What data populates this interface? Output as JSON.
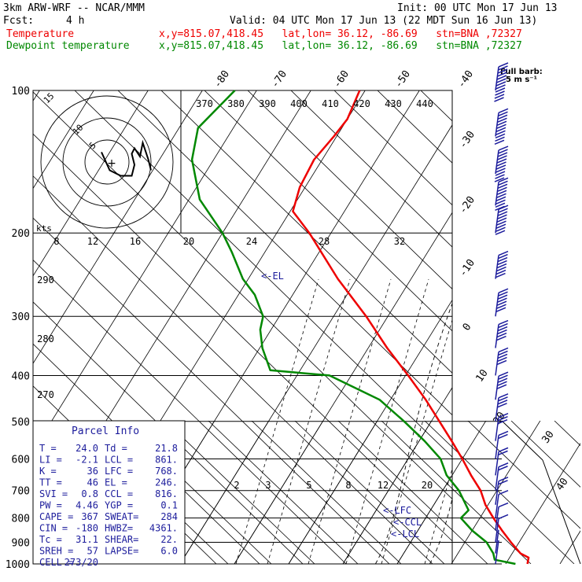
{
  "header": {
    "model": "3km ARW-WRF -- NCAR/MMM",
    "init": "Init: 00 UTC Mon 17 Jun 13",
    "fcst_label": "Fcst:",
    "fcst_value": "4 h",
    "valid": "Valid: 04 UTC Mon 17 Jun 13 (22 MDT Sun 16 Jun 13)",
    "temp_label": "Temperature",
    "temp_loc": "x,y=815.07,418.45   lat,lon= 36.12, -86.69   stn=BNA ,72327",
    "dew_label": "Dewpoint temperature",
    "dew_loc": "x,y=815.07,418.45   lat,lon= 36.12, -86.69   stn=BNA ,72327"
  },
  "colors": {
    "temperature": "#ee0000",
    "dewpoint": "#008800",
    "axes": "#000000",
    "barbs": "#1c1c9c"
  },
  "chart_data": {
    "type": "line",
    "pressure_levels": [
      1000,
      900,
      800,
      700,
      600,
      500,
      400,
      300,
      200,
      100
    ],
    "pressure_labels": [
      "1000",
      "900",
      "800",
      "700",
      "600",
      "500",
      "400",
      "300",
      "200",
      "100"
    ],
    "isotherm_labels": [
      "-80",
      "-70",
      "-60",
      "-50",
      "-40",
      "-30",
      "-20",
      "-10",
      "0",
      "10",
      "20",
      "30",
      "40"
    ],
    "theta_labels": [
      "370",
      "380",
      "390",
      "400",
      "410",
      "420",
      "430",
      "440"
    ],
    "left_theta_labels": [
      "290",
      "280",
      "270"
    ],
    "mixing_ratio_labels": [
      "2",
      "3",
      "5",
      "8",
      "12",
      "20"
    ],
    "hodo_speed_labels": [
      "8",
      "12",
      "16",
      "20",
      "24",
      "28",
      "32"
    ],
    "hodo_ring_labels": [
      "5",
      "10",
      "15"
    ],
    "hodo_units": "kts",
    "barb_legend": [
      "Full barb:",
      "5 m s⁻¹"
    ],
    "level_markers": [
      "<-EL",
      "<-LFC",
      "<-CCL",
      "<-LCL"
    ],
    "series": [
      {
        "name": "Temperature",
        "points": [
          [
            1000,
            24.0
          ],
          [
            970,
            23.5
          ],
          [
            950,
            21.5
          ],
          [
            900,
            18.5
          ],
          [
            850,
            15.5
          ],
          [
            800,
            12.5
          ],
          [
            750,
            9.5
          ],
          [
            700,
            7.0
          ],
          [
            650,
            3.5
          ],
          [
            600,
            0.0
          ],
          [
            550,
            -4.0
          ],
          [
            500,
            -8.5
          ],
          [
            450,
            -13.5
          ],
          [
            400,
            -19.5
          ],
          [
            350,
            -26.5
          ],
          [
            300,
            -34.0
          ],
          [
            250,
            -43.5
          ],
          [
            200,
            -54.0
          ],
          [
            180,
            -59.5
          ],
          [
            160,
            -61.0
          ],
          [
            140,
            -61.5
          ],
          [
            125,
            -60.5
          ],
          [
            115,
            -60.0
          ],
          [
            100,
            -61.0
          ]
        ]
      },
      {
        "name": "Dewpoint temperature",
        "points": [
          [
            1000,
            21.8
          ],
          [
            980,
            17.5
          ],
          [
            950,
            16.5
          ],
          [
            900,
            14.0
          ],
          [
            850,
            10.0
          ],
          [
            800,
            6.5
          ],
          [
            770,
            7.0
          ],
          [
            700,
            3.0
          ],
          [
            650,
            -1.0
          ],
          [
            600,
            -4.0
          ],
          [
            550,
            -9.0
          ],
          [
            500,
            -15.0
          ],
          [
            450,
            -22.0
          ],
          [
            400,
            -34.0
          ],
          [
            390,
            -45.5
          ],
          [
            350,
            -49.5
          ],
          [
            320,
            -52.0
          ],
          [
            300,
            -53.0
          ],
          [
            270,
            -57.0
          ],
          [
            250,
            -61.0
          ],
          [
            220,
            -66.0
          ],
          [
            200,
            -70.0
          ],
          [
            170,
            -78.0
          ],
          [
            140,
            -84.0
          ],
          [
            120,
            -86.5
          ],
          [
            100,
            -84.0
          ]
        ]
      }
    ],
    "parcel_info": {
      "title": "Parcel Info",
      "rows": [
        [
          "T  =",
          "24.0",
          "Td =",
          "21.8"
        ],
        [
          "LI =",
          "-2.1",
          "LCL =",
          "861."
        ],
        [
          "K  =",
          "36",
          "LFC =",
          "768."
        ],
        [
          "TT =",
          "46",
          "EL =",
          "246."
        ],
        [
          "SVI =",
          "0.8",
          "CCL =",
          "816."
        ],
        [
          "PW =",
          "4.46",
          "YGP =",
          "0.1"
        ],
        [
          "CAPE =",
          "367",
          "SWEAT=",
          "284"
        ],
        [
          "CIN =",
          "-180",
          "HWBZ=",
          "4361."
        ],
        [
          "Tc =",
          "31.1",
          "SHEAR=",
          "22."
        ],
        [
          "SREH =",
          "57",
          "LAPSE=",
          "6.0"
        ],
        [
          "CELL =",
          "273/20",
          "",
          ""
        ]
      ]
    },
    "hodograph": [
      [
        -1.0,
        -1.8
      ],
      [
        0.5,
        1.5
      ],
      [
        2.5,
        2.5
      ],
      [
        4.5,
        2.5
      ],
      [
        5.0,
        0.5
      ],
      [
        4.5,
        -1.5
      ],
      [
        5.0,
        -2.5
      ],
      [
        6.0,
        -1.0
      ],
      [
        6.5,
        -3.5
      ],
      [
        7.5,
        -0.5
      ],
      [
        8.0,
        1.5
      ]
    ],
    "wind_barbs": [
      [
        100,
        60
      ],
      [
        125,
        55
      ],
      [
        150,
        55
      ],
      [
        175,
        50
      ],
      [
        200,
        45
      ],
      [
        250,
        40
      ],
      [
        300,
        35
      ],
      [
        350,
        30
      ],
      [
        400,
        28
      ],
      [
        450,
        25
      ],
      [
        500,
        20
      ],
      [
        550,
        15
      ],
      [
        600,
        12
      ],
      [
        650,
        12
      ],
      [
        700,
        12
      ],
      [
        750,
        10
      ],
      [
        800,
        8
      ],
      [
        850,
        8
      ],
      [
        900,
        6
      ],
      [
        950,
        4
      ],
      [
        1000,
        3
      ]
    ]
  }
}
